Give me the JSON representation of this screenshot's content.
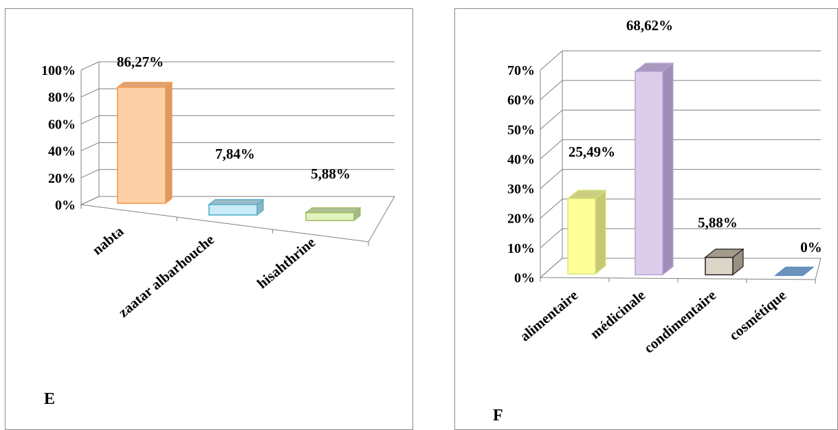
{
  "chart_data": [
    {
      "type": "bar",
      "panel_label": "E",
      "categories": [
        "nabta",
        "zaatar albarhouche",
        "hisahthrine"
      ],
      "values": [
        86.27,
        7.84,
        5.88
      ],
      "data_labels": [
        "86,27%",
        "7,84%",
        "5,88%"
      ],
      "ylim": [
        0,
        100
      ],
      "yticks": [
        "0%",
        "20%",
        "40%",
        "60%",
        "80%",
        "100%"
      ],
      "grid": true,
      "style": "3d-column",
      "colors": [
        {
          "fill": "#FCCFA6",
          "side": "#D89B66",
          "edge": "#F79646"
        },
        {
          "fill": "#C9ECF8",
          "side": "#8FB5C3",
          "edge": "#4BACC6"
        },
        {
          "fill": "#E2F2BE",
          "side": "#A7B98A",
          "edge": "#9BBB59"
        }
      ]
    },
    {
      "type": "bar",
      "panel_label": "F",
      "categories": [
        "alimentaire",
        "médicinale",
        "condimentaire",
        "cosmétique"
      ],
      "values": [
        25.49,
        68.62,
        5.88,
        0
      ],
      "data_labels": [
        "25,49%",
        "68,62%",
        "5,88%",
        "0%"
      ],
      "ylim": [
        0,
        70
      ],
      "yticks": [
        "0%",
        "10%",
        "20%",
        "30%",
        "40%",
        "50%",
        "60%",
        "70%"
      ],
      "grid": true,
      "style": "3d-column",
      "colors": [
        {
          "fill": "#FFFF99",
          "side": "#C8C874",
          "edge": "#D7E77A"
        },
        {
          "fill": "#DCCDEB",
          "side": "#A08CB8",
          "edge": "#B8A2D8"
        },
        {
          "fill": "#DDD5C8",
          "side": "#9A8F80",
          "edge": "#222222"
        },
        {
          "fill": "#8DB3E2",
          "side": "#5C86B5",
          "edge": "#4F81BD"
        }
      ]
    }
  ]
}
